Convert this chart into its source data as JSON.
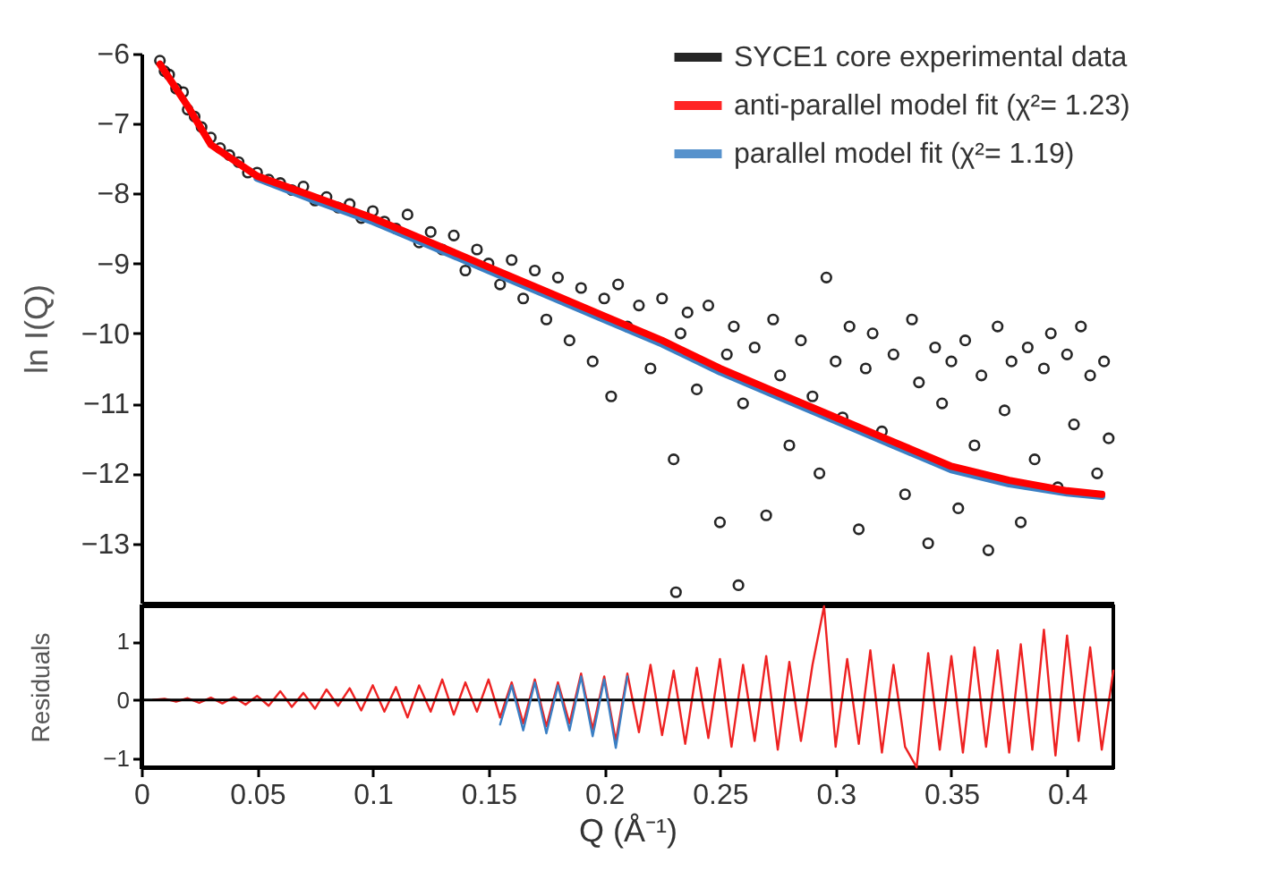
{
  "chart_data": [
    {
      "type": "scatter",
      "ylabel": "ln I(Q)",
      "xlim": [
        0,
        0.42
      ],
      "xticks": [
        0,
        0.05,
        0.1,
        0.15,
        0.2,
        0.25,
        0.3,
        0.35,
        0.4
      ],
      "ylim": [
        -13.85,
        -6
      ],
      "yticks": [
        -6,
        -7,
        -8,
        -9,
        -10,
        -11,
        -12,
        -13
      ],
      "tick_labels": "y",
      "grid": false,
      "legend": "top right",
      "series": [
        {
          "name": "SYCE1 core experimental data",
          "marker": "circle",
          "color": "#000000",
          "x": [
            0.008,
            0.01,
            0.012,
            0.015,
            0.018,
            0.02,
            0.023,
            0.026,
            0.03,
            0.034,
            0.038,
            0.042,
            0.046,
            0.05,
            0.055,
            0.06,
            0.065,
            0.07,
            0.075,
            0.08,
            0.085,
            0.09,
            0.095,
            0.1,
            0.105,
            0.11,
            0.115,
            0.12,
            0.125,
            0.13,
            0.135,
            0.14,
            0.145,
            0.15,
            0.155,
            0.16,
            0.165,
            0.17,
            0.175,
            0.18,
            0.185,
            0.19,
            0.195,
            0.2,
            0.203,
            0.206,
            0.21,
            0.215,
            0.22,
            0.225,
            0.23,
            0.231,
            0.233,
            0.236,
            0.24,
            0.245,
            0.25,
            0.253,
            0.256,
            0.258,
            0.26,
            0.265,
            0.27,
            0.273,
            0.276,
            0.28,
            0.285,
            0.29,
            0.293,
            0.296,
            0.3,
            0.303,
            0.306,
            0.31,
            0.313,
            0.316,
            0.32,
            0.325,
            0.33,
            0.333,
            0.336,
            0.34,
            0.343,
            0.346,
            0.35,
            0.353,
            0.356,
            0.36,
            0.363,
            0.366,
            0.37,
            0.373,
            0.376,
            0.38,
            0.383,
            0.386,
            0.39,
            0.393,
            0.396,
            0.4,
            0.403,
            0.406,
            0.41,
            0.413,
            0.416,
            0.418
          ],
          "values": [
            -6.1,
            -6.25,
            -6.3,
            -6.5,
            -6.55,
            -6.8,
            -6.9,
            -7.05,
            -7.2,
            -7.35,
            -7.45,
            -7.55,
            -7.7,
            -7.7,
            -7.8,
            -7.85,
            -7.95,
            -7.9,
            -8.1,
            -8.05,
            -8.2,
            -8.15,
            -8.35,
            -8.25,
            -8.4,
            -8.5,
            -8.3,
            -8.7,
            -8.55,
            -8.8,
            -8.6,
            -9.1,
            -8.8,
            -9.0,
            -9.3,
            -8.95,
            -9.5,
            -9.1,
            -9.8,
            -9.2,
            -10.1,
            -9.35,
            -10.4,
            -9.5,
            -10.9,
            -9.3,
            -9.9,
            -9.6,
            -10.5,
            -9.5,
            -11.8,
            -13.7,
            -10.0,
            -9.7,
            -10.8,
            -9.6,
            -12.7,
            -10.3,
            -9.9,
            -13.6,
            -11.0,
            -10.2,
            -12.6,
            -9.8,
            -10.6,
            -11.6,
            -10.1,
            -10.9,
            -12.0,
            -9.2,
            -10.4,
            -11.2,
            -9.9,
            -12.8,
            -10.5,
            -10.0,
            -11.4,
            -10.3,
            -12.3,
            -9.8,
            -10.7,
            -13.0,
            -10.2,
            -11.0,
            -10.4,
            -12.5,
            -10.1,
            -11.6,
            -10.6,
            -13.1,
            -9.9,
            -11.1,
            -10.4,
            -12.7,
            -10.2,
            -11.8,
            -10.5,
            -10.0,
            -12.2,
            -10.3,
            -11.3,
            -9.9,
            -10.6,
            -12.0,
            -10.4,
            -11.5
          ]
        },
        {
          "name": "anti-parallel model fit  (χ²= 1.23)",
          "type": "line",
          "color": "#ff0000",
          "x": [
            0.008,
            0.01,
            0.02,
            0.03,
            0.05,
            0.075,
            0.1,
            0.125,
            0.15,
            0.175,
            0.2,
            0.225,
            0.25,
            0.275,
            0.3,
            0.325,
            0.35,
            0.375,
            0.4,
            0.415
          ],
          "values": [
            -6.15,
            -6.25,
            -6.75,
            -7.3,
            -7.75,
            -8.05,
            -8.35,
            -8.7,
            -9.05,
            -9.4,
            -9.75,
            -10.1,
            -10.5,
            -10.85,
            -11.2,
            -11.55,
            -11.9,
            -12.1,
            -12.25,
            -12.3
          ]
        },
        {
          "name": "parallel model fit (χ²= 1.19)",
          "type": "line",
          "color": "#3a7fc4",
          "x": [
            0.05,
            0.075,
            0.1,
            0.125,
            0.15,
            0.175,
            0.2,
            0.225,
            0.25,
            0.275,
            0.3,
            0.325,
            0.35,
            0.375,
            0.4,
            0.415
          ],
          "values": [
            -7.78,
            -8.1,
            -8.4,
            -8.75,
            -9.1,
            -9.45,
            -9.8,
            -10.15,
            -10.55,
            -10.9,
            -11.25,
            -11.6,
            -11.95,
            -12.15,
            -12.28,
            -12.33
          ]
        }
      ]
    },
    {
      "type": "line",
      "ylabel": "Residuals",
      "xlabel": "Q (Å⁻¹)",
      "xlim": [
        0,
        0.42
      ],
      "ylim": [
        -1.15,
        1.6
      ],
      "xticks": [
        0,
        0.05,
        0.1,
        0.15,
        0.2,
        0.25,
        0.3,
        0.35,
        0.4
      ],
      "yticks": [
        1,
        0,
        -1
      ],
      "grid": false,
      "ref_lines": [
        {
          "axis": "y",
          "value": 0,
          "color": "#000000"
        }
      ],
      "series": [
        {
          "color": "#3a7fc4",
          "x": [
            0.155,
            0.16,
            0.165,
            0.17,
            0.175,
            0.18,
            0.185,
            0.19,
            0.195,
            0.2,
            0.205,
            0.21
          ],
          "values": [
            -0.42,
            0.25,
            -0.52,
            0.3,
            -0.57,
            0.25,
            -0.52,
            0.4,
            -0.62,
            0.35,
            -0.82,
            0.4
          ]
        },
        {
          "color": "#ee2222",
          "x": [
            0.005,
            0.01,
            0.015,
            0.02,
            0.025,
            0.03,
            0.035,
            0.04,
            0.045,
            0.05,
            0.055,
            0.06,
            0.065,
            0.07,
            0.075,
            0.08,
            0.085,
            0.09,
            0.095,
            0.1,
            0.105,
            0.11,
            0.115,
            0.12,
            0.125,
            0.13,
            0.135,
            0.14,
            0.145,
            0.15,
            0.155,
            0.16,
            0.165,
            0.17,
            0.175,
            0.18,
            0.185,
            0.19,
            0.195,
            0.2,
            0.205,
            0.21,
            0.215,
            0.22,
            0.225,
            0.23,
            0.235,
            0.24,
            0.245,
            0.25,
            0.255,
            0.26,
            0.265,
            0.27,
            0.275,
            0.28,
            0.285,
            0.29,
            0.295,
            0.3,
            0.305,
            0.31,
            0.315,
            0.32,
            0.325,
            0.33,
            0.335,
            0.34,
            0.345,
            0.35,
            0.355,
            0.36,
            0.365,
            0.37,
            0.375,
            0.38,
            0.385,
            0.39,
            0.395,
            0.4,
            0.405,
            0.41,
            0.415,
            0.42
          ],
          "values": [
            0,
            0.02,
            -0.03,
            0.03,
            -0.05,
            0.04,
            -0.06,
            0.05,
            -0.08,
            0.07,
            -0.1,
            0.15,
            -0.12,
            0.12,
            -0.15,
            0.18,
            -0.1,
            0.2,
            -0.18,
            0.25,
            -0.2,
            0.22,
            -0.3,
            0.25,
            -0.2,
            0.35,
            -0.25,
            0.3,
            -0.2,
            0.35,
            -0.3,
            0.3,
            -0.4,
            0.35,
            -0.45,
            0.3,
            -0.4,
            0.45,
            -0.5,
            0.4,
            -0.7,
            0.45,
            -0.55,
            0.6,
            -0.6,
            0.5,
            -0.75,
            0.55,
            -0.65,
            0.7,
            -0.8,
            0.6,
            -0.7,
            0.75,
            -0.85,
            0.65,
            -0.7,
            0.6,
            1.6,
            -0.8,
            0.7,
            -0.75,
            0.85,
            -0.9,
            0.6,
            -0.8,
            -1.15,
            0.8,
            -0.85,
            0.75,
            -0.9,
            0.9,
            -0.8,
            0.85,
            -0.9,
            0.95,
            -0.85,
            1.2,
            -0.95,
            1.1,
            -0.7,
            0.9,
            -0.85,
            0.5
          ]
        }
      ]
    }
  ]
}
